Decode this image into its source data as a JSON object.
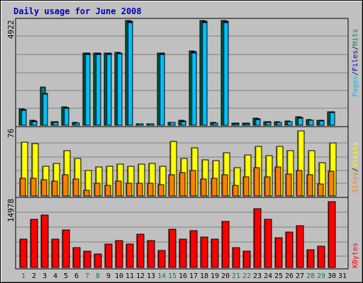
{
  "title": "Daily usage for June 2008",
  "colors": {
    "background": "#c0c0c0",
    "panel": "#c0c0c0",
    "title": "#0000c0",
    "pages": "#00c0ff",
    "files": "#0000c0",
    "hits": "#00805c",
    "visits": "#ffff00",
    "sites": "#ff8000",
    "kbytes": "#ff0000",
    "separator": "#000000",
    "weekday": "#000000",
    "weekend": "#00805c"
  },
  "chart_data": [
    {
      "type": "bar",
      "panel": "pages-files-hits",
      "y_max_label": "4922",
      "legend": [
        "Pages",
        "/",
        "Files",
        "/",
        "Hits"
      ],
      "ylim": [
        0,
        4922
      ],
      "categories": [
        "1",
        "2",
        "3",
        "4",
        "5",
        "6",
        "7",
        "8",
        "9",
        "10",
        "11",
        "12",
        "13",
        "14",
        "15",
        "16",
        "17",
        "18",
        "19",
        "20",
        "21",
        "22",
        "23",
        "24",
        "25",
        "26",
        "27",
        "28",
        "29",
        "30",
        "31"
      ],
      "series": [
        {
          "name": "Hits",
          "values": [
            750,
            220,
            1800,
            180,
            860,
            120,
            3400,
            3400,
            3400,
            3420,
            4922,
            80,
            80,
            3400,
            140,
            220,
            3480,
            4922,
            120,
            4922,
            90,
            90,
            330,
            160,
            150,
            190,
            390,
            260,
            240,
            640,
            0
          ]
        },
        {
          "name": "Files",
          "values": [
            720,
            200,
            1480,
            170,
            840,
            100,
            3380,
            3380,
            3380,
            3400,
            4880,
            75,
            75,
            3380,
            130,
            200,
            3450,
            4880,
            110,
            4880,
            85,
            85,
            310,
            150,
            140,
            180,
            370,
            240,
            230,
            620,
            0
          ]
        },
        {
          "name": "Pages",
          "values": [
            690,
            180,
            1450,
            140,
            810,
            90,
            3340,
            3340,
            3340,
            3370,
            4820,
            70,
            70,
            3340,
            120,
            180,
            3400,
            4820,
            100,
            4820,
            80,
            80,
            280,
            130,
            130,
            170,
            340,
            220,
            210,
            590,
            0
          ]
        }
      ]
    },
    {
      "type": "bar",
      "panel": "visits-sites",
      "y_max_label": "76",
      "legend": [
        "Sites",
        "/",
        "Visits"
      ],
      "ylim": [
        0,
        76
      ],
      "categories": [
        "1",
        "2",
        "3",
        "4",
        "5",
        "6",
        "7",
        "8",
        "9",
        "10",
        "11",
        "12",
        "13",
        "14",
        "15",
        "16",
        "17",
        "18",
        "19",
        "20",
        "21",
        "22",
        "23",
        "24",
        "25",
        "26",
        "27",
        "28",
        "29",
        "30",
        "31"
      ],
      "series": [
        {
          "name": "Visits",
          "values": [
            63,
            61,
            35,
            38,
            53,
            44,
            30,
            34,
            35,
            37,
            35,
            37,
            38,
            35,
            64,
            44,
            56,
            42,
            41,
            50,
            33,
            48,
            58,
            47,
            58,
            53,
            76,
            53,
            39,
            62,
            0
          ]
        },
        {
          "name": "Sites",
          "values": [
            21,
            21,
            19,
            17,
            25,
            20,
            7,
            15,
            12,
            17,
            15,
            15,
            15,
            13,
            25,
            27,
            30,
            20,
            21,
            25,
            12,
            22,
            33,
            22,
            34,
            26,
            30,
            25,
            14,
            29,
            0
          ]
        }
      ]
    },
    {
      "type": "bar",
      "panel": "kbytes",
      "y_max_label": "14978",
      "legend": [
        "KBytes"
      ],
      "ylim": [
        0,
        14978
      ],
      "categories": [
        "1",
        "2",
        "3",
        "4",
        "5",
        "6",
        "7",
        "8",
        "9",
        "10",
        "11",
        "12",
        "13",
        "14",
        "15",
        "16",
        "17",
        "18",
        "19",
        "20",
        "21",
        "22",
        "23",
        "24",
        "25",
        "26",
        "27",
        "28",
        "29",
        "30",
        "31"
      ],
      "series": [
        {
          "name": "KBytes",
          "values": [
            6500,
            10900,
            11900,
            6500,
            8600,
            4500,
            3700,
            3100,
            5300,
            6200,
            5300,
            7500,
            6200,
            3900,
            8700,
            6500,
            8300,
            6900,
            6500,
            10400,
            4500,
            3700,
            13300,
            10900,
            6700,
            8100,
            9500,
            4100,
            4800,
            14978,
            0
          ]
        }
      ]
    }
  ]
}
